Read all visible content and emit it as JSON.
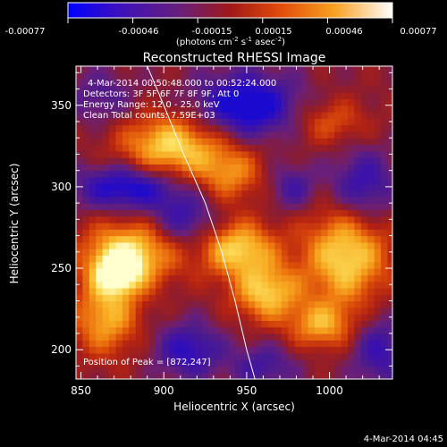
{
  "colorbar": {
    "ticks": [
      "-0.00077",
      "-0.00046",
      "-0.00015",
      "0.00015",
      "0.00046",
      "0.00077"
    ],
    "unit": {
      "prefix": "(photons cm",
      "e1": "-2",
      "mid1": " s",
      "e2": "-1",
      "mid2": " asec",
      "e3": "-2",
      "suffix": ")"
    }
  },
  "annotations": {
    "time_range": "4-Mar-2014 00:50:48.000 to 00:52:24.000",
    "detectors": "Detectors: 3F 5F 6F 7F 8F 9F, Att 0",
    "energy": "Energy Range: 12.0 - 25.0 keV",
    "clean": "Clean     Total counts: 7.59E+03",
    "peak": "Position of Peak = [872,247]"
  },
  "footer": {
    "timestamp": "4-Mar-2014 04:45"
  },
  "chart_data": {
    "type": "heatmap",
    "title": "Reconstructed RHESSI Image",
    "xlabel": "Heliocentric X (arcsec)",
    "ylabel": "Heliocentric Y (arcsec)",
    "xlim": [
      847,
      1038
    ],
    "ylim": [
      182,
      374
    ],
    "x_ticks": [
      850,
      900,
      950,
      1000
    ],
    "y_ticks": [
      200,
      250,
      300,
      350
    ],
    "color_range": [
      -0.00077,
      0.00077
    ],
    "colormap": [
      "#1a0ad0",
      "#3a10b0",
      "#4a1a90",
      "#6a1f78",
      "#8a1c30",
      "#b32212",
      "#d8470a",
      "#ee7a10",
      "#f8b025",
      "#fde060",
      "#ffffd0"
    ],
    "blob_scale": 0.00077,
    "blobs": [
      {
        "x": 905,
        "y": 325,
        "amp": 1.0,
        "sx": 22,
        "sy": 14
      },
      {
        "x": 880,
        "y": 260,
        "amp": 1.0,
        "sx": 20,
        "sy": 14
      },
      {
        "x": 872,
        "y": 247,
        "amp": 1.0,
        "sx": 10,
        "sy": 9
      },
      {
        "x": 865,
        "y": 220,
        "amp": 0.8,
        "sx": 14,
        "sy": 16
      },
      {
        "x": 945,
        "y": 262,
        "amp": 0.95,
        "sx": 16,
        "sy": 12
      },
      {
        "x": 962,
        "y": 235,
        "amp": 0.9,
        "sx": 14,
        "sy": 12
      },
      {
        "x": 1010,
        "y": 258,
        "amp": 1.0,
        "sx": 18,
        "sy": 22
      },
      {
        "x": 995,
        "y": 215,
        "amp": 0.7,
        "sx": 14,
        "sy": 10
      },
      {
        "x": 1000,
        "y": 340,
        "amp": 0.45,
        "sx": 16,
        "sy": 10
      },
      {
        "x": 940,
        "y": 308,
        "amp": 0.6,
        "sx": 14,
        "sy": 12
      },
      {
        "x": 950,
        "y": 350,
        "amp": -1.0,
        "sx": 22,
        "sy": 14
      },
      {
        "x": 878,
        "y": 300,
        "amp": -0.9,
        "sx": 22,
        "sy": 10
      },
      {
        "x": 912,
        "y": 280,
        "amp": -0.6,
        "sx": 14,
        "sy": 12
      },
      {
        "x": 1020,
        "y": 300,
        "amp": -0.7,
        "sx": 14,
        "sy": 16
      },
      {
        "x": 978,
        "y": 300,
        "amp": -0.5,
        "sx": 10,
        "sy": 10
      },
      {
        "x": 915,
        "y": 200,
        "amp": -0.7,
        "sx": 14,
        "sy": 12
      },
      {
        "x": 1030,
        "y": 200,
        "amp": -0.6,
        "sx": 12,
        "sy": 16
      },
      {
        "x": 960,
        "y": 190,
        "amp": -0.5,
        "sx": 14,
        "sy": 10
      },
      {
        "x": 862,
        "y": 355,
        "amp": -0.4,
        "sx": 14,
        "sy": 12
      }
    ],
    "limb_curve": [
      [
        890,
        374
      ],
      [
        900,
        350
      ],
      [
        912,
        320
      ],
      [
        925,
        290
      ],
      [
        935,
        260
      ],
      [
        943,
        230
      ],
      [
        950,
        200
      ],
      [
        955,
        182
      ]
    ]
  }
}
